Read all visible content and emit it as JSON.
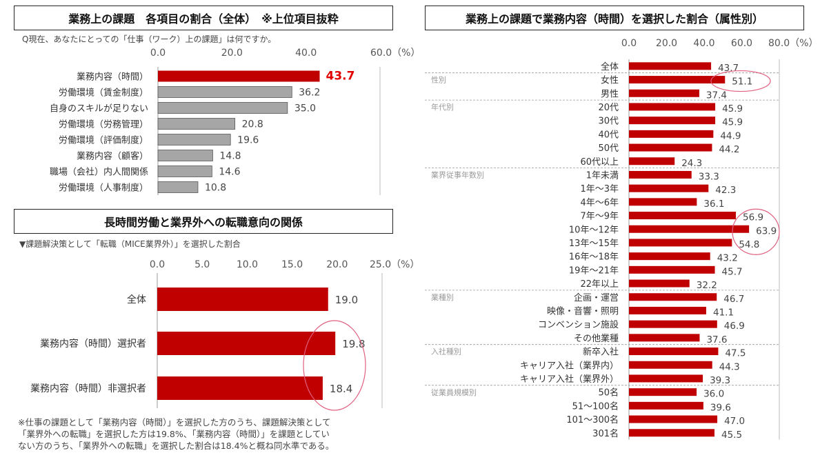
{
  "chart_data": [
    {
      "type": "bar",
      "title": "業務上の課題　各項目の割合（全体）　※上位項目抜粋",
      "subtitle": "Q現在、あなたにとっての「仕事（ワーク）上の課題」は何ですか。",
      "ticks": [
        "0.0",
        "20.0",
        "40.0",
        "60.0（%）"
      ],
      "xlim": [
        0,
        60
      ],
      "categories": [
        "業務内容（時間）",
        "労働環境（賃金制度）",
        "自身のスキルが足りない",
        "労働環境（労務管理）",
        "労働環境（評価制度）",
        "業務内容（顧客）",
        "職場（会社）内人間関係",
        "労働環境（人事制度）"
      ],
      "values": [
        43.7,
        36.2,
        35.0,
        20.8,
        19.6,
        14.8,
        14.6,
        10.8
      ],
      "value_labels": [
        "43.7",
        "36.2",
        "35.0",
        "20.8",
        "19.6",
        "14.8",
        "14.6",
        "10.8"
      ],
      "highlight_index": 0,
      "colors": {
        "highlight": "#c00000",
        "normal": "#a6a6a6",
        "highlight_text": "#e00000"
      }
    },
    {
      "type": "bar",
      "title": "長時間労働と業界外への転職意向の関係",
      "subtitle": "▼課題解決策として「転職（MICE業界外）」を選択した割合",
      "ticks": [
        "0.0",
        "5.0",
        "10.0",
        "15.0",
        "20.0",
        "25.0（%）"
      ],
      "xlim": [
        0,
        25
      ],
      "categories": [
        "全体",
        "業務内容（時間）選択者",
        "業務内容（時間）非選択者"
      ],
      "values": [
        19.0,
        19.8,
        18.4
      ],
      "value_labels": [
        "19.0",
        "19.8",
        "18.4"
      ],
      "colors": {
        "bar": "#c00000",
        "circle": "#e06080"
      },
      "footnote": [
        "※仕事の課題として「業務内容（時間）」を選択した方のうち、課題解決策として",
        "「業界外への転職」を選択した方は19.8%、「業務内容（時間）」を課題としてい",
        "ない方のうち、「業界外への転職」を選択した割合は18.4%と概ね同水準である。"
      ]
    },
    {
      "type": "bar",
      "title": "業務上の課題で業務内容（時間）を選択した割合（属性別）",
      "ticks": [
        "0.0",
        "20.0",
        "40.0",
        "60.0",
        "80.0（%）"
      ],
      "xlim": [
        0,
        80
      ],
      "categories": [
        "全体",
        "女性",
        "男性",
        "20代",
        "30代",
        "40代",
        "50代",
        "60代以上",
        "1年未満",
        "1年～3年",
        "4年～6年",
        "7年～9年",
        "10年～12年",
        "13年～15年",
        "16年～18年",
        "19年～21年",
        "22年以上",
        "企画・運営",
        "映像・音響・照明",
        "コンベンション施設",
        "その他業種",
        "新卒入社",
        "キャリア入社（業界内）",
        "キャリア入社（業界外）",
        "50名",
        "51～100名",
        "101～300名",
        "301名"
      ],
      "values": [
        43.7,
        51.1,
        37.4,
        45.9,
        45.9,
        44.9,
        44.2,
        24.3,
        33.3,
        42.3,
        36.1,
        56.9,
        63.9,
        54.8,
        43.2,
        45.7,
        32.2,
        46.7,
        41.1,
        46.9,
        37.6,
        47.5,
        44.3,
        39.3,
        36.0,
        39.6,
        47.0,
        45.5
      ],
      "value_labels": [
        "43.7",
        "51.1",
        "37.4",
        "45.9",
        "45.9",
        "44.9",
        "44.2",
        "24.3",
        "33.3",
        "42.3",
        "36.1",
        "56.9",
        "63.9",
        "54.8",
        "43.2",
        "45.7",
        "32.2",
        "46.7",
        "41.1",
        "46.9",
        "37.6",
        "47.5",
        "44.3",
        "39.3",
        "36.0",
        "39.6",
        "47.0",
        "45.5"
      ],
      "groups": [
        {
          "label": "性別",
          "start": 1
        },
        {
          "label": "年代別",
          "start": 3
        },
        {
          "label": "業界従事年数別",
          "start": 8
        },
        {
          "label": "業種別",
          "start": 17
        },
        {
          "label": "入社種別",
          "start": 21
        },
        {
          "label": "従業員規模別",
          "start": 24
        }
      ],
      "colors": {
        "bar": "#c00000",
        "circle": "#e06080"
      }
    }
  ]
}
